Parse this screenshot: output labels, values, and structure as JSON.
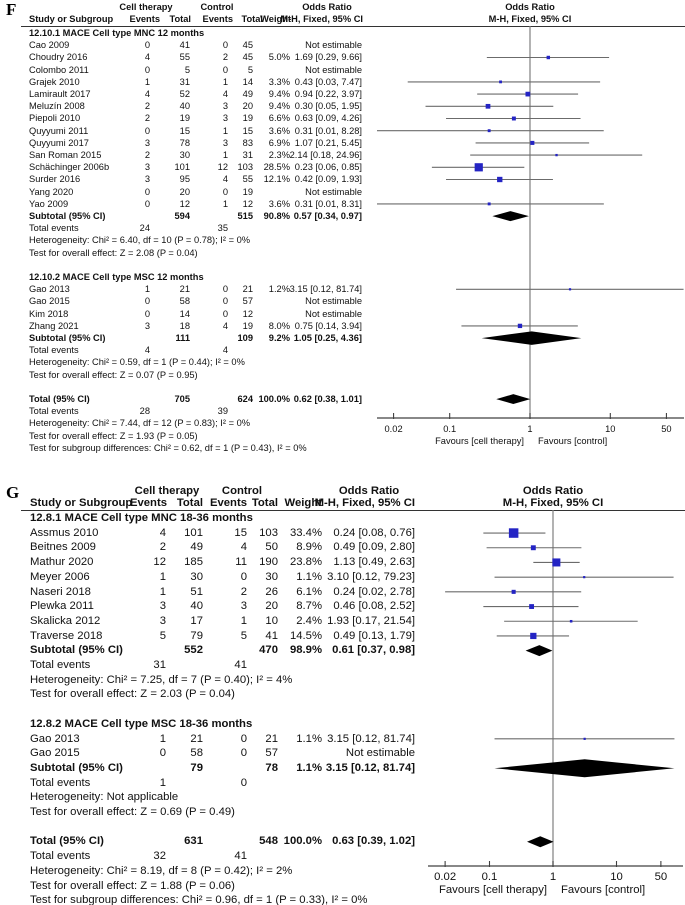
{
  "colors": {
    "marker_blue": "#2424c4",
    "diamond_black": "#000000",
    "ci_line_gray": "#6b6b6b",
    "no_effect_line_gray": "#808080",
    "axis_gray": "#404040",
    "text": "#111111",
    "background": "#ffffff"
  },
  "chart_data": [
    {
      "panel_label": "F",
      "type": "scatter",
      "subtype": "forest_plot_odds_ratio",
      "x_scale": "log",
      "header": {
        "group1": "Cell therapy",
        "group2": "Control",
        "study_col": "Study or Subgroup",
        "events_col": "Events",
        "total_col": "Total",
        "weight_col": "Weight",
        "or_title": "Odds Ratio",
        "mh_col": "M-H, Fixed, 95% CI"
      },
      "axis": {
        "tick_labels": [
          "0.02",
          "0.1",
          "1",
          "10",
          "50"
        ],
        "tick_values": [
          0.02,
          0.1,
          1,
          10,
          50
        ],
        "favours_left": "Favours [cell therapy]",
        "favours_right": "Favours [control]"
      },
      "rows": [
        {
          "t": "sec",
          "text": "12.10.1 MACE Cell type MNC 12 months"
        },
        {
          "t": "study",
          "name": "Cao 2009",
          "e1": "0",
          "t1": "41",
          "e2": "0",
          "t2": "45",
          "w": "",
          "or": "Not estimable",
          "v": null
        },
        {
          "t": "study",
          "name": "Choudry 2016",
          "e1": "4",
          "t1": "55",
          "e2": "2",
          "t2": "45",
          "w": "5.0%",
          "or": "1.69 [0.29, 9.66]",
          "v": [
            1.69,
            0.29,
            9.66,
            5.0
          ]
        },
        {
          "t": "study",
          "name": "Colombo 2011",
          "e1": "0",
          "t1": "5",
          "e2": "0",
          "t2": "5",
          "w": "",
          "or": "Not estimable",
          "v": null
        },
        {
          "t": "study",
          "name": "Grajek 2010",
          "e1": "1",
          "t1": "31",
          "e2": "1",
          "t2": "14",
          "w": "3.3%",
          "or": "0.43 [0.03, 7.47]",
          "v": [
            0.43,
            0.03,
            7.47,
            3.3
          ]
        },
        {
          "t": "study",
          "name": "Lamirault 2017",
          "e1": "4",
          "t1": "52",
          "e2": "4",
          "t2": "49",
          "w": "9.4%",
          "or": "0.94 [0.22, 3.97]",
          "v": [
            0.94,
            0.22,
            3.97,
            9.4
          ]
        },
        {
          "t": "study",
          "name": "Meluzín 2008",
          "e1": "2",
          "t1": "40",
          "e2": "3",
          "t2": "20",
          "w": "9.4%",
          "or": "0.30 [0.05, 1.95]",
          "v": [
            0.3,
            0.05,
            1.95,
            9.4
          ]
        },
        {
          "t": "study",
          "name": "Piepoli 2010",
          "e1": "2",
          "t1": "19",
          "e2": "3",
          "t2": "19",
          "w": "6.6%",
          "or": "0.63 [0.09, 4.26]",
          "v": [
            0.63,
            0.09,
            4.26,
            6.6
          ]
        },
        {
          "t": "study",
          "name": "Quyyumi 2011",
          "e1": "0",
          "t1": "15",
          "e2": "1",
          "t2": "15",
          "w": "3.6%",
          "or": "0.31 [0.01, 8.28]",
          "v": [
            0.31,
            0.01,
            8.28,
            3.6
          ]
        },
        {
          "t": "study",
          "name": "Quyyumi 2017",
          "e1": "3",
          "t1": "78",
          "e2": "3",
          "t2": "83",
          "w": "6.9%",
          "or": "1.07 [0.21, 5.45]",
          "v": [
            1.07,
            0.21,
            5.45,
            6.9
          ]
        },
        {
          "t": "study",
          "name": "San Roman 2015",
          "e1": "2",
          "t1": "30",
          "e2": "1",
          "t2": "31",
          "w": "2.3%",
          "or": "2.14 [0.18, 24.96]",
          "v": [
            2.14,
            0.18,
            24.96,
            2.3
          ]
        },
        {
          "t": "study",
          "name": "Schächinger 2006b",
          "e1": "3",
          "t1": "101",
          "e2": "12",
          "t2": "103",
          "w": "28.5%",
          "or": "0.23 [0.06, 0.85]",
          "v": [
            0.23,
            0.06,
            0.85,
            28.5
          ]
        },
        {
          "t": "study",
          "name": "Surder 2016",
          "e1": "3",
          "t1": "95",
          "e2": "4",
          "t2": "55",
          "w": "12.1%",
          "or": "0.42 [0.09, 1.93]",
          "v": [
            0.42,
            0.09,
            1.93,
            12.1
          ]
        },
        {
          "t": "study",
          "name": "Yang 2020",
          "e1": "0",
          "t1": "20",
          "e2": "0",
          "t2": "19",
          "w": "",
          "or": "Not estimable",
          "v": null
        },
        {
          "t": "study",
          "name": "Yao 2009",
          "e1": "0",
          "t1": "12",
          "e2": "1",
          "t2": "12",
          "w": "3.6%",
          "or": "0.31 [0.01, 8.31]",
          "v": [
            0.31,
            0.01,
            8.31,
            3.6
          ]
        },
        {
          "t": "sub",
          "name": "Subtotal (95% CI)",
          "t1": "594",
          "t2": "515",
          "w": "90.8%",
          "or": "0.57 [0.34, 0.97]",
          "v": [
            0.57,
            0.34,
            0.97
          ]
        },
        {
          "t": "ev",
          "name": "Total events",
          "e1": "24",
          "e2": "35"
        },
        {
          "t": "note",
          "text": "Heterogeneity: Chi² = 6.40, df = 10 (P = 0.78); I² = 0%"
        },
        {
          "t": "note",
          "text": "Test for overall effect: Z = 2.08 (P = 0.04)"
        },
        {
          "t": "gap"
        },
        {
          "t": "sec",
          "text": "12.10.2 MACE Cell type MSC 12 months"
        },
        {
          "t": "study",
          "name": "Gao 2013",
          "e1": "1",
          "t1": "21",
          "e2": "0",
          "t2": "21",
          "w": "1.2%",
          "or": "3.15 [0.12, 81.74]",
          "v": [
            3.15,
            0.12,
            81.74,
            1.2
          ]
        },
        {
          "t": "study",
          "name": "Gao 2015",
          "e1": "0",
          "t1": "58",
          "e2": "0",
          "t2": "57",
          "w": "",
          "or": "Not estimable",
          "v": null
        },
        {
          "t": "study",
          "name": "Kim 2018",
          "e1": "0",
          "t1": "14",
          "e2": "0",
          "t2": "12",
          "w": "",
          "or": "Not estimable",
          "v": null
        },
        {
          "t": "study",
          "name": "Zhang 2021",
          "e1": "3",
          "t1": "18",
          "e2": "4",
          "t2": "19",
          "w": "8.0%",
          "or": "0.75 [0.14, 3.94]",
          "v": [
            0.75,
            0.14,
            3.94,
            8.0
          ]
        },
        {
          "t": "sub",
          "name": "Subtotal (95% CI)",
          "t1": "111",
          "t2": "109",
          "w": "9.2%",
          "or": "1.05 [0.25, 4.36]",
          "v": [
            1.05,
            0.25,
            4.36
          ]
        },
        {
          "t": "ev",
          "name": "Total events",
          "e1": "4",
          "e2": "4"
        },
        {
          "t": "note",
          "text": "Heterogeneity: Chi² = 0.59, df = 1 (P = 0.44); I² = 0%"
        },
        {
          "t": "note",
          "text": "Test for overall effect: Z = 0.07 (P = 0.95)"
        },
        {
          "t": "gap"
        },
        {
          "t": "tot",
          "name": "Total (95% CI)",
          "t1": "705",
          "t2": "624",
          "w": "100.0%",
          "or": "0.62 [0.38, 1.01]",
          "v": [
            0.62,
            0.38,
            1.01
          ]
        },
        {
          "t": "ev",
          "name": "Total events",
          "e1": "28",
          "e2": "39"
        },
        {
          "t": "note",
          "text": "Heterogeneity: Chi² = 7.44, df = 12 (P = 0.83); I² = 0%"
        },
        {
          "t": "note",
          "text": "Test for overall effect: Z = 1.93 (P = 0.05)"
        },
        {
          "t": "note",
          "text": "Test for subgroup differences: Chi² = 0.62, df = 1 (P = 0.43), I² = 0%"
        }
      ]
    },
    {
      "panel_label": "G",
      "type": "scatter",
      "subtype": "forest_plot_odds_ratio",
      "x_scale": "log",
      "header": {
        "group1": "Cell therapy",
        "group2": "Control",
        "study_col": "Study or Subgroup",
        "events_col": "Events",
        "total_col": "Total",
        "weight_col": "Weight",
        "or_title": "Odds Ratio",
        "mh_col": "M-H, Fixed, 95% CI"
      },
      "axis": {
        "tick_labels": [
          "0.02",
          "0.1",
          "1",
          "10",
          "50"
        ],
        "tick_values": [
          0.02,
          0.1,
          1,
          10,
          50
        ],
        "favours_left": "Favours [cell therapy]",
        "favours_right": "Favours [control]"
      },
      "rows": [
        {
          "t": "sec",
          "text": "12.8.1 MACE Cell type MNC 18-36 months"
        },
        {
          "t": "study",
          "name": "Assmus 2010",
          "e1": "4",
          "t1": "101",
          "e2": "15",
          "t2": "103",
          "w": "33.4%",
          "or": "0.24 [0.08, 0.76]",
          "v": [
            0.24,
            0.08,
            0.76,
            33.4
          ]
        },
        {
          "t": "study",
          "name": "Beitnes 2009",
          "e1": "2",
          "t1": "49",
          "e2": "4",
          "t2": "50",
          "w": "8.9%",
          "or": "0.49 [0.09, 2.80]",
          "v": [
            0.49,
            0.09,
            2.8,
            8.9
          ]
        },
        {
          "t": "study",
          "name": "Mathur 2020",
          "e1": "12",
          "t1": "185",
          "e2": "11",
          "t2": "190",
          "w": "23.8%",
          "or": "1.13 [0.49, 2.63]",
          "v": [
            1.13,
            0.49,
            2.63,
            23.8
          ]
        },
        {
          "t": "study",
          "name": "Meyer 2006",
          "e1": "1",
          "t1": "30",
          "e2": "0",
          "t2": "30",
          "w": "1.1%",
          "or": "3.10 [0.12, 79.23]",
          "v": [
            3.1,
            0.12,
            79.23,
            1.1
          ]
        },
        {
          "t": "study",
          "name": "Naseri 2018",
          "e1": "1",
          "t1": "51",
          "e2": "2",
          "t2": "26",
          "w": "6.1%",
          "or": "0.24 [0.02, 2.78]",
          "v": [
            0.24,
            0.02,
            2.78,
            6.1
          ]
        },
        {
          "t": "study",
          "name": "Plewka 2011",
          "e1": "3",
          "t1": "40",
          "e2": "3",
          "t2": "20",
          "w": "8.7%",
          "or": "0.46 [0.08, 2.52]",
          "v": [
            0.46,
            0.08,
            2.52,
            8.7
          ]
        },
        {
          "t": "study",
          "name": "Skalicka 2012",
          "e1": "3",
          "t1": "17",
          "e2": "1",
          "t2": "10",
          "w": "2.4%",
          "or": "1.93 [0.17, 21.54]",
          "v": [
            1.93,
            0.17,
            21.54,
            2.4
          ]
        },
        {
          "t": "study",
          "name": "Traverse 2018",
          "e1": "5",
          "t1": "79",
          "e2": "5",
          "t2": "41",
          "w": "14.5%",
          "or": "0.49 [0.13, 1.79]",
          "v": [
            0.49,
            0.13,
            1.79,
            14.5
          ]
        },
        {
          "t": "sub",
          "name": "Subtotal (95% CI)",
          "t1": "552",
          "t2": "470",
          "w": "98.9%",
          "or": "0.61 [0.37, 0.98]",
          "v": [
            0.61,
            0.37,
            0.98
          ]
        },
        {
          "t": "ev",
          "name": "Total events",
          "e1": "31",
          "e2": "41"
        },
        {
          "t": "note",
          "text": "Heterogeneity: Chi² = 7.25, df = 7 (P = 0.40); I² = 4%"
        },
        {
          "t": "note",
          "text": "Test for overall effect: Z = 2.03 (P = 0.04)"
        },
        {
          "t": "gap"
        },
        {
          "t": "sec",
          "text": "12.8.2 MACE Cell type MSC 18-36 months"
        },
        {
          "t": "study",
          "name": "Gao 2013",
          "e1": "1",
          "t1": "21",
          "e2": "0",
          "t2": "21",
          "w": "1.1%",
          "or": "3.15 [0.12, 81.74]",
          "v": [
            3.15,
            0.12,
            81.74,
            1.1
          ]
        },
        {
          "t": "study",
          "name": "Gao 2015",
          "e1": "0",
          "t1": "58",
          "e2": "0",
          "t2": "57",
          "w": "",
          "or": "Not estimable",
          "v": null
        },
        {
          "t": "sub",
          "name": "Subtotal (95% CI)",
          "t1": "79",
          "t2": "78",
          "w": "1.1%",
          "or": "3.15 [0.12, 81.74]",
          "v": [
            3.15,
            0.12,
            81.74
          ]
        },
        {
          "t": "ev",
          "name": "Total events",
          "e1": "1",
          "e2": "0"
        },
        {
          "t": "note",
          "text": "Heterogeneity: Not applicable"
        },
        {
          "t": "note",
          "text": "Test for overall effect: Z = 0.69 (P = 0.49)"
        },
        {
          "t": "gap"
        },
        {
          "t": "tot",
          "name": "Total (95% CI)",
          "t1": "631",
          "t2": "548",
          "w": "100.0%",
          "or": "0.63 [0.39, 1.02]",
          "v": [
            0.63,
            0.39,
            1.02
          ]
        },
        {
          "t": "ev",
          "name": "Total events",
          "e1": "32",
          "e2": "41"
        },
        {
          "t": "note",
          "text": "Heterogeneity: Chi² = 8.19, df = 8 (P = 0.42); I² = 2%"
        },
        {
          "t": "note",
          "text": "Test for overall effect: Z = 1.88 (P = 0.06)"
        },
        {
          "t": "note",
          "text": "Test for subgroup differences: Chi² = 0.96, df = 1 (P = 0.33), I² = 0%"
        }
      ]
    }
  ]
}
